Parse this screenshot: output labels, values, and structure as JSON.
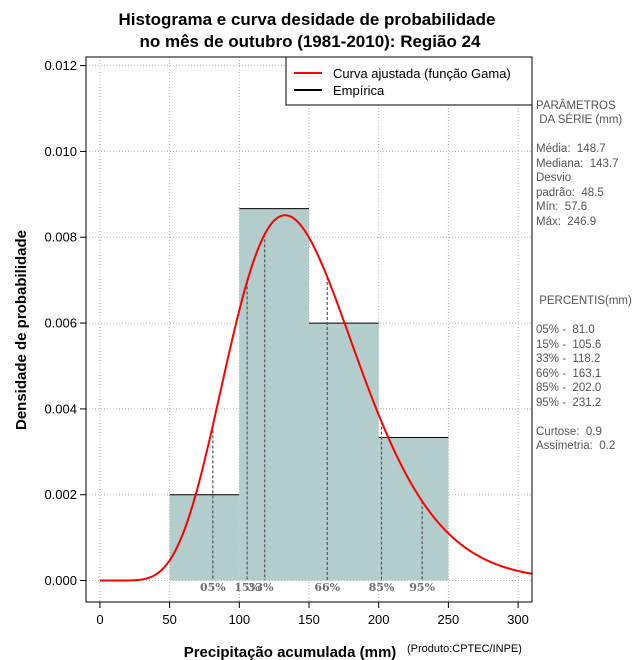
{
  "chart_data": {
    "type": "bar",
    "title": "Histograma e curva desidade de probabilidade",
    "subtitle": "no mês de outubro (1981-2010): Região 24",
    "title_line1": "Histograma e curva desidade de probabilidade",
    "xlabel": "Precipitação acumulada (mm)",
    "ylabel": "Densidade de probabilidade",
    "credit": "(Produto:CPTEC/INPE)",
    "xlim": [
      -10,
      310
    ],
    "ylim": [
      -0.0005,
      0.0122
    ],
    "x_ticks": [
      0,
      50,
      100,
      150,
      200,
      250,
      300
    ],
    "y_ticks": [
      0.0,
      0.002,
      0.004,
      0.006,
      0.008,
      0.01,
      0.012
    ],
    "y_tick_labels": [
      "0.000",
      "0.002",
      "0.004",
      "0.006",
      "0.008",
      "0.010",
      "0.012"
    ],
    "grid": true,
    "bins": [
      {
        "start": 50,
        "end": 100,
        "density": 0.002
      },
      {
        "start": 100,
        "end": 150,
        "density": 0.008667
      },
      {
        "start": 150,
        "end": 200,
        "density": 0.006
      },
      {
        "start": 200,
        "end": 250,
        "density": 0.003333
      }
    ],
    "gamma_fit": {
      "shape": 9.2,
      "scale": 16.2
    },
    "legend": [
      "Curva ajustada (função Gama)",
      "Empírica"
    ],
    "legend_position": "top-right",
    "percentiles": [
      {
        "label": "05%",
        "value": 81.0
      },
      {
        "label": "15%",
        "value": 105.6
      },
      {
        "label": "33%",
        "value": 118.2
      },
      {
        "label": "66%",
        "value": 163.1
      },
      {
        "label": "85%",
        "value": 202.0
      },
      {
        "label": "95%",
        "value": 231.2
      }
    ],
    "colors": {
      "bar_fill": "#b3cccc",
      "curve": "#ff0000",
      "grid": "#b0b0b0",
      "pct_line": "#555555"
    }
  },
  "side_panel": {
    "params_header_1": "PARÂMETROS",
    "params_header_2": " DA SÉRIE (mm)",
    "media": "Média:  148.7",
    "mediana": "Mediana:  143.7",
    "desvio_1": "Desvio",
    "desvio_2": "padrão:  48.5",
    "min": "Mín:  57.6",
    "max": "Máx:  246.9",
    "pct_header": " PERCENTIS(mm)",
    "p05": "05% -  81.0",
    "p15": "15% -  105.6",
    "p33": "33% -  118.2",
    "p66": "66% -  163.1",
    "p85": "85% -  202.0",
    "p95": "95% -  231.2",
    "curtose": "Curtose:  0.9",
    "assimetria": "Assimetria:  0.2"
  }
}
